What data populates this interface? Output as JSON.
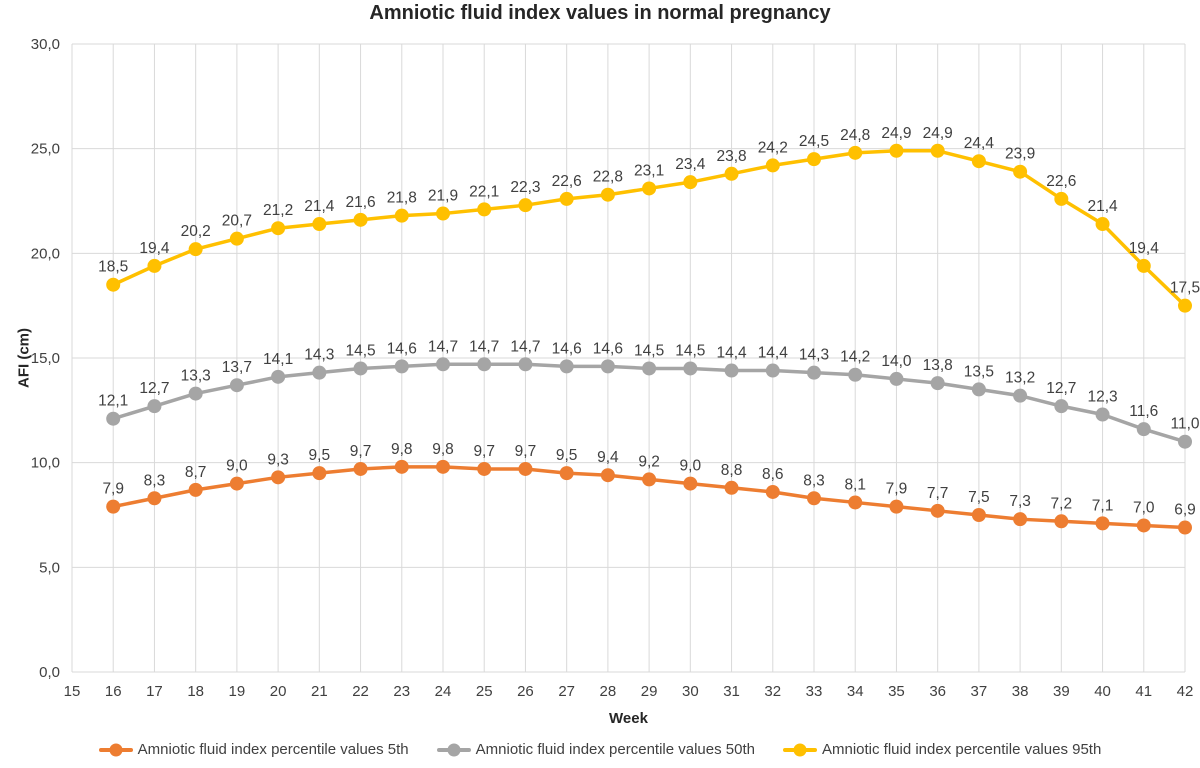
{
  "title": "Amniotic fluid index values in normal pregnancy",
  "chart_data": {
    "type": "line",
    "title": "Amniotic fluid index values in normal pregnancy",
    "xlabel": "Week",
    "ylabel": "AFI (cm)",
    "xlim": [
      15,
      42
    ],
    "ylim": [
      0,
      30
    ],
    "x_axis_ticks": [
      15,
      16,
      17,
      18,
      19,
      20,
      21,
      22,
      23,
      24,
      25,
      26,
      27,
      28,
      29,
      30,
      31,
      32,
      33,
      34,
      35,
      36,
      37,
      38,
      39,
      40,
      41,
      42
    ],
    "y_axis_ticks": [
      0,
      5,
      10,
      15,
      20,
      25,
      30
    ],
    "decimal_separator": ",",
    "grid": true,
    "grid_color": "#D9D9D9",
    "text_color": "#404040",
    "data_labels": true,
    "legend_position": "bottom",
    "x": [
      16,
      17,
      18,
      19,
      20,
      21,
      22,
      23,
      24,
      25,
      26,
      27,
      28,
      29,
      30,
      31,
      32,
      33,
      34,
      35,
      36,
      37,
      38,
      39,
      40,
      41,
      42
    ],
    "series": [
      {
        "name": "Amniotic fluid index percentile values 5th",
        "color": "#ED7D31",
        "values": [
          7.9,
          8.3,
          8.7,
          9.0,
          9.3,
          9.5,
          9.7,
          9.8,
          9.8,
          9.7,
          9.7,
          9.5,
          9.4,
          9.2,
          9.0,
          8.8,
          8.6,
          8.3,
          8.1,
          7.9,
          7.7,
          7.5,
          7.3,
          7.2,
          7.1,
          7.0,
          6.9
        ]
      },
      {
        "name": "Amniotic fluid index percentile values 50th",
        "color": "#A5A5A5",
        "values": [
          12.1,
          12.7,
          13.3,
          13.7,
          14.1,
          14.3,
          14.5,
          14.6,
          14.7,
          14.7,
          14.7,
          14.6,
          14.6,
          14.5,
          14.5,
          14.4,
          14.4,
          14.3,
          14.2,
          14.0,
          13.8,
          13.5,
          13.2,
          12.7,
          12.3,
          11.6,
          11.0
        ]
      },
      {
        "name": "Amniotic fluid index percentile values 95th",
        "color": "#FFC000",
        "values": [
          18.5,
          19.4,
          20.2,
          20.7,
          21.2,
          21.4,
          21.6,
          21.8,
          21.9,
          22.1,
          22.3,
          22.6,
          22.8,
          23.1,
          23.4,
          23.8,
          24.2,
          24.5,
          24.8,
          24.9,
          24.9,
          24.4,
          23.9,
          22.6,
          21.4,
          19.4,
          17.5
        ]
      }
    ]
  }
}
